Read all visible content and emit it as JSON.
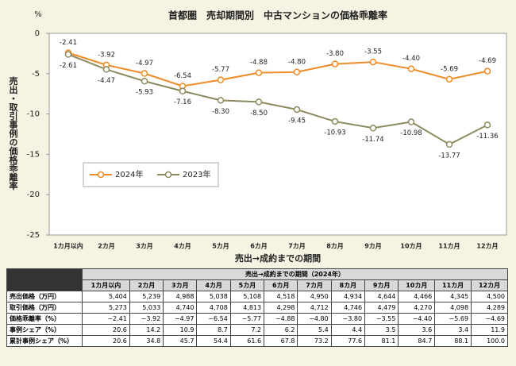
{
  "chart_data": {
    "type": "line",
    "title": "首都圏　売却期間別　中古マンションの価格乖離率",
    "unit_label": "%",
    "y_label": "売出・取引事例の価格乖離率",
    "x_label": "売出→成約までの期間",
    "categories": [
      "1カ月以内",
      "2カ月",
      "3カ月",
      "4カ月",
      "5カ月",
      "6カ月",
      "7カ月",
      "8カ月",
      "9カ月",
      "10カ月",
      "11カ月",
      "12カ月"
    ],
    "series": [
      {
        "name": "2024年",
        "color": "#f08a24",
        "values": [
          -2.41,
          -3.92,
          -4.97,
          -6.54,
          -5.77,
          -4.88,
          -4.8,
          -3.8,
          -3.55,
          -4.4,
          -5.69,
          -4.69
        ],
        "value_labels": [
          "-2.41",
          "-3.92",
          "-4.97",
          "-6.54",
          "-5.77",
          "-4.88",
          "-4.80",
          "-3.80",
          "-3.55",
          "-4.40",
          "-5.69",
          "-4.69"
        ]
      },
      {
        "name": "2023年",
        "color": "#8c8a5e",
        "values": [
          -2.61,
          -4.47,
          -5.93,
          -7.16,
          -8.3,
          -8.5,
          -9.45,
          -10.93,
          -11.74,
          -10.98,
          -13.77,
          -11.36
        ],
        "value_labels": [
          "-2.61",
          "-4.47",
          "-5.93",
          "-7.16",
          "-8.30",
          "-8.50",
          "-9.45",
          "-10.93",
          "-11.74",
          "-10.98",
          "-13.77",
          "-11.36"
        ]
      }
    ],
    "ylim": [
      -25,
      0
    ],
    "yticks": [
      0,
      -5,
      -10,
      -15,
      -20,
      -25
    ],
    "grid": false,
    "legend": "lower left"
  },
  "table": {
    "header": "売出→成約までの期間（2024年）",
    "columns": [
      "1カ月以内",
      "2カ月",
      "3カ月",
      "4カ月",
      "5カ月",
      "6カ月",
      "7カ月",
      "8カ月",
      "9カ月",
      "10カ月",
      "11カ月",
      "12カ月"
    ],
    "rows": [
      {
        "label": "売出価格（万円）",
        "cells": [
          "5,404",
          "5,239",
          "4,988",
          "5,038",
          "5,108",
          "4,518",
          "4,950",
          "4,934",
          "4,644",
          "4,466",
          "4,345",
          "4,500"
        ]
      },
      {
        "label": "取引価格（万円）",
        "cells": [
          "5,273",
          "5,033",
          "4,740",
          "4,708",
          "4,813",
          "4,298",
          "4,712",
          "4,746",
          "4,479",
          "4,270",
          "4,098",
          "4,289"
        ]
      },
      {
        "label": "価格乖離率（%）",
        "cells": [
          "−2.41",
          "−3.92",
          "−4.97",
          "−6.54",
          "−5.77",
          "−4.88",
          "−4.80",
          "−3.80",
          "−3.55",
          "−4.40",
          "−5.69",
          "−4.69"
        ]
      },
      {
        "label": "事例シェア（%）",
        "cells": [
          "20.6",
          "14.2",
          "10.9",
          "8.7",
          "7.2",
          "6.2",
          "5.4",
          "4.4",
          "3.5",
          "3.6",
          "3.4",
          "11.9"
        ]
      },
      {
        "label": "累計事例シェア（%）",
        "cells": [
          "20.6",
          "34.8",
          "45.7",
          "54.4",
          "61.6",
          "67.8",
          "73.2",
          "77.6",
          "81.1",
          "84.7",
          "88.1",
          "100.0"
        ]
      }
    ]
  }
}
